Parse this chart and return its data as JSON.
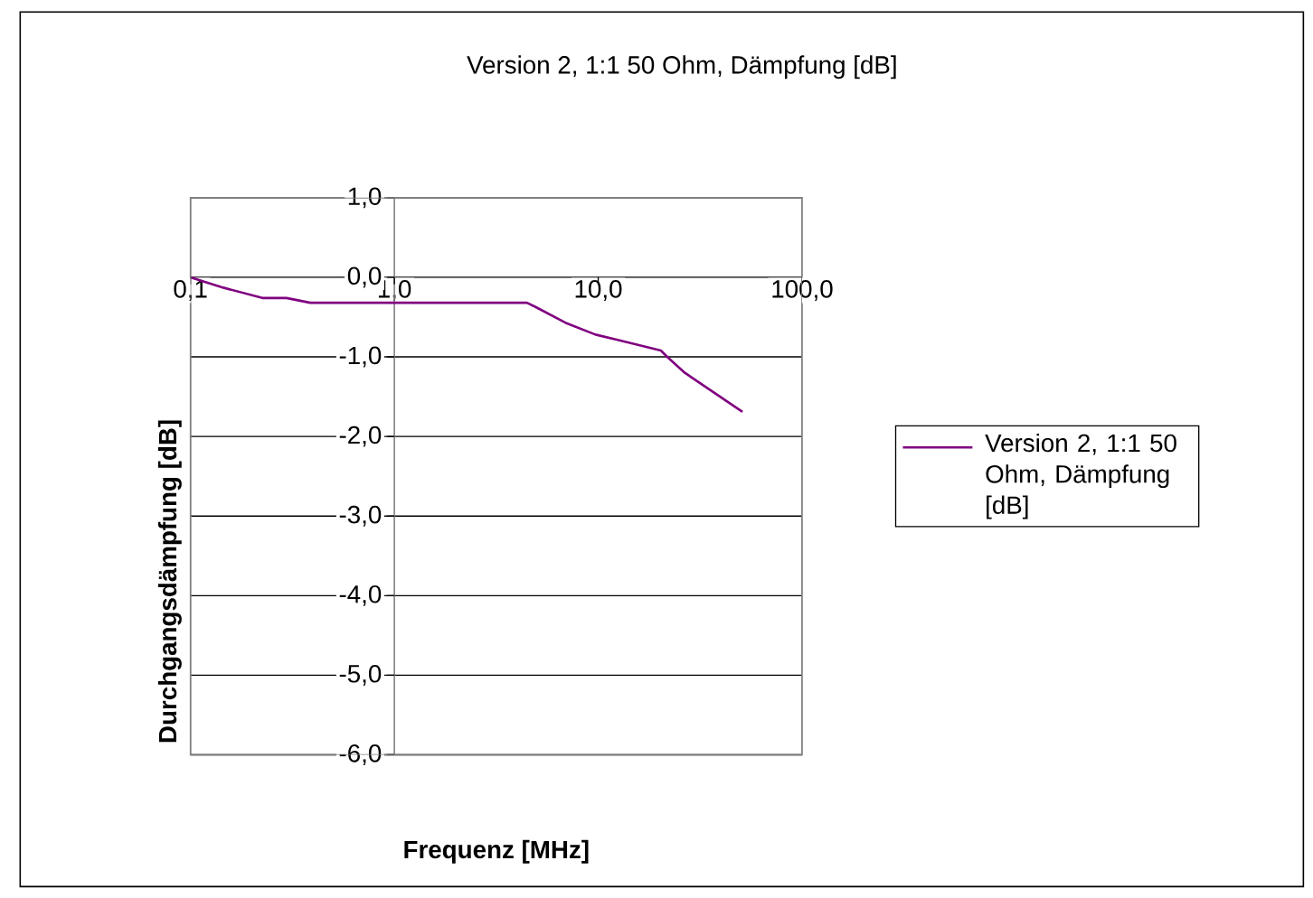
{
  "chart_data": {
    "type": "line",
    "title": "Version 2, 1:1 50 Ohm, Dämpfung [dB]",
    "xlabel": "Frequenz [MHz]",
    "ylabel": "Durchgangsdämpfung [dB]",
    "log": "x",
    "x": [
      0.1,
      0.145,
      0.225,
      0.296,
      0.387,
      4.47,
      4.9,
      6.9,
      9.7,
      12.6,
      20.3,
      21.8,
      26.6,
      51
    ],
    "series": [
      {
        "name": "Version 2, 1:1 50 Ohm, Dämpfung [dB]",
        "color": "#800080",
        "values": [
          0,
          -0.13,
          -0.26,
          -0.26,
          -0.32,
          -0.32,
          -0.37,
          -0.57,
          -0.72,
          -0.79,
          -0.92,
          -1.0,
          -1.2,
          -1.69
        ]
      }
    ],
    "xlim": [
      0.1,
      100
    ],
    "ylim": [
      -6,
      1
    ],
    "xticks": [
      {
        "value": 0.1,
        "label": "0,1"
      },
      {
        "value": 1,
        "label": "1,0"
      },
      {
        "value": 10,
        "label": "10,0"
      },
      {
        "value": 100,
        "label": "100,0"
      }
    ],
    "yticks": [
      {
        "value": 1,
        "label": "1,0"
      },
      {
        "value": 0,
        "label": "0,0"
      },
      {
        "value": -1,
        "label": "-1,0"
      },
      {
        "value": -2,
        "label": "-2,0"
      },
      {
        "value": -3,
        "label": "-3,0"
      },
      {
        "value": -4,
        "label": "-4,0"
      },
      {
        "value": -5,
        "label": "-5,0"
      },
      {
        "value": -6,
        "label": "-6,0"
      }
    ],
    "grid": "y",
    "legend": "right",
    "marker": "none",
    "line_style": "solid"
  }
}
